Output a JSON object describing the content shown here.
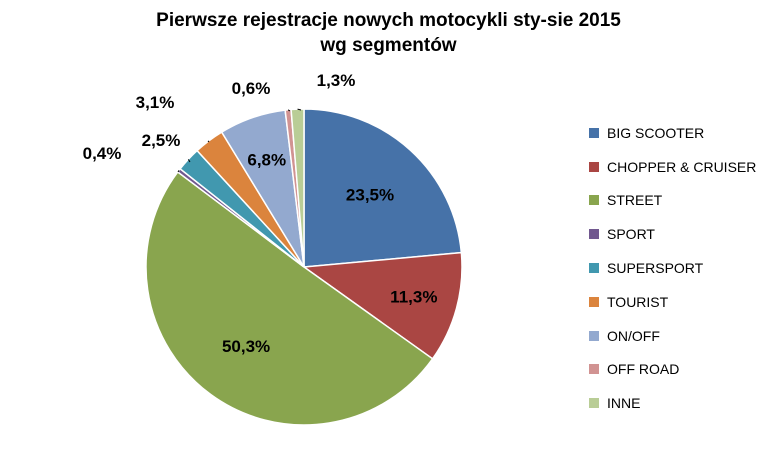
{
  "chart_data": {
    "type": "pie",
    "title": [
      "Pierwsze rejestracje nowych motocykli sty-sie 2015",
      "wg segmentów"
    ],
    "legend_position": "right",
    "slices": [
      {
        "name": "BIG SCOOTER",
        "value": 23.5,
        "label": "23,5%",
        "color": "#4672a8"
      },
      {
        "name": "CHOPPER & CRUISER",
        "value": 11.3,
        "label": "11,3%",
        "color": "#aa4643"
      },
      {
        "name": "STREET",
        "value": 50.3,
        "label": "50,3%",
        "color": "#89a54e"
      },
      {
        "name": "SPORT",
        "value": 0.4,
        "label": "0,4%",
        "color": "#71588f"
      },
      {
        "name": "SUPERSPORT",
        "value": 2.5,
        "label": "2,5%",
        "color": "#4198af"
      },
      {
        "name": "TOURIST",
        "value": 3.1,
        "label": "3,1%",
        "color": "#db843d"
      },
      {
        "name": "ON/OFF",
        "value": 6.8,
        "label": "6,8%",
        "color": "#93a9cf"
      },
      {
        "name": "OFF ROAD",
        "value": 0.6,
        "label": "0,6%",
        "color": "#d19392"
      },
      {
        "name": "INNE",
        "value": 1.3,
        "label": "1,3%",
        "color": "#b9cd96"
      }
    ]
  }
}
